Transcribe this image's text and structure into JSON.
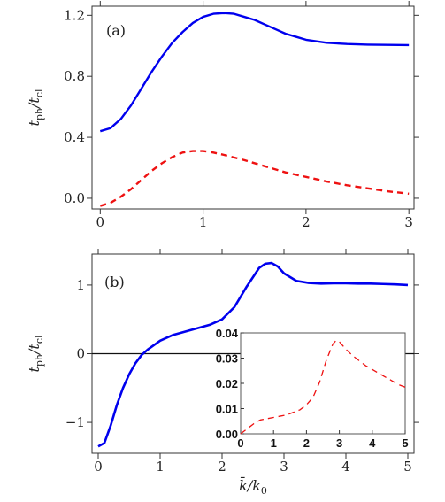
{
  "chart_data": [
    {
      "type": "line",
      "panel_label": "(a)",
      "xlabel": "",
      "ylabel": "t_ph/t_cl",
      "xlim": [
        -0.08,
        3.05
      ],
      "ylim": [
        -0.07,
        1.26
      ],
      "xticks": [
        0,
        1,
        2,
        3
      ],
      "xtick_labels": [
        "0",
        "1",
        "2",
        "3"
      ],
      "yticks": [
        0.0,
        0.4,
        0.8,
        1.2
      ],
      "ytick_labels": [
        "0.0",
        "0.4",
        "0.8",
        "1.2"
      ],
      "grid": false,
      "series": [
        {
          "color": "#0000ee",
          "style": "solid",
          "x": [
            0,
            0.1,
            0.2,
            0.3,
            0.4,
            0.5,
            0.6,
            0.7,
            0.8,
            0.9,
            1.0,
            1.1,
            1.2,
            1.3,
            1.4,
            1.5,
            1.6,
            1.7,
            1.8,
            1.9,
            2.0,
            2.2,
            2.4,
            2.6,
            2.8,
            3.0
          ],
          "y": [
            0.44,
            0.46,
            0.52,
            0.61,
            0.72,
            0.83,
            0.93,
            1.02,
            1.09,
            1.15,
            1.19,
            1.21,
            1.215,
            1.21,
            1.19,
            1.17,
            1.14,
            1.11,
            1.08,
            1.06,
            1.04,
            1.02,
            1.012,
            1.008,
            1.006,
            1.005
          ]
        },
        {
          "color": "#ee1111",
          "style": "dashed",
          "x": [
            0,
            0.1,
            0.2,
            0.3,
            0.4,
            0.5,
            0.6,
            0.7,
            0.8,
            0.9,
            1.0,
            1.1,
            1.2,
            1.4,
            1.6,
            1.8,
            2.0,
            2.2,
            2.4,
            2.6,
            2.8,
            3.0
          ],
          "y": [
            -0.05,
            -0.03,
            0.01,
            0.06,
            0.12,
            0.18,
            0.23,
            0.27,
            0.3,
            0.31,
            0.31,
            0.3,
            0.285,
            0.25,
            0.21,
            0.17,
            0.14,
            0.11,
            0.085,
            0.065,
            0.045,
            0.03
          ]
        }
      ]
    },
    {
      "type": "line",
      "panel_label": "(b)",
      "xlabel": "k̄/k0",
      "ylabel": "t_ph/t_cl",
      "xlim": [
        -0.1,
        5.1
      ],
      "ylim": [
        -1.45,
        1.45
      ],
      "xticks": [
        0,
        1,
        2,
        3,
        4,
        5
      ],
      "xtick_labels": [
        "0",
        "1",
        "2",
        "3",
        "4",
        "5"
      ],
      "yticks": [
        -1,
        0,
        1
      ],
      "ytick_labels": [
        "−1",
        "0",
        "1"
      ],
      "zero_line": true,
      "grid": false,
      "series": [
        {
          "color": "#0000ee",
          "style": "solid",
          "x": [
            0,
            0.1,
            0.2,
            0.3,
            0.4,
            0.5,
            0.6,
            0.7,
            0.8,
            1.0,
            1.2,
            1.4,
            1.6,
            1.8,
            2.0,
            2.2,
            2.4,
            2.6,
            2.7,
            2.8,
            2.9,
            3.0,
            3.2,
            3.4,
            3.6,
            3.8,
            4.0,
            4.2,
            4.4,
            4.6,
            4.8,
            5.0
          ],
          "y": [
            -1.35,
            -1.3,
            -1.05,
            -0.75,
            -0.5,
            -0.3,
            -0.14,
            -0.02,
            0.06,
            0.19,
            0.27,
            0.32,
            0.37,
            0.42,
            0.5,
            0.68,
            0.98,
            1.25,
            1.31,
            1.32,
            1.27,
            1.17,
            1.06,
            1.03,
            1.02,
            1.025,
            1.025,
            1.02,
            1.02,
            1.015,
            1.01,
            1.0
          ]
        }
      ],
      "inset": {
        "xlim": [
          0,
          5
        ],
        "ylim": [
          0,
          0.04
        ],
        "xticks": [
          0,
          1,
          2,
          3,
          4,
          5
        ],
        "xtick_labels": [
          "0",
          "1",
          "2",
          "3",
          "4",
          "5"
        ],
        "yticks": [
          0.0,
          0.01,
          0.02,
          0.03,
          0.04
        ],
        "ytick_labels": [
          "0.00",
          "0.01",
          "0.02",
          "0.03",
          "0.04"
        ],
        "series": [
          {
            "color": "#ee1111",
            "style": "dashed",
            "x": [
              0,
              0.2,
              0.4,
              0.6,
              0.8,
              1.0,
              1.2,
              1.4,
              1.6,
              1.8,
              2.0,
              2.2,
              2.4,
              2.6,
              2.8,
              2.9,
              3.0,
              3.2,
              3.4,
              3.6,
              3.8,
              4.0,
              4.2,
              4.4,
              4.6,
              4.8,
              5.0
            ],
            "y": [
              0.0,
              0.002,
              0.004,
              0.0055,
              0.006,
              0.0065,
              0.007,
              0.0075,
              0.0085,
              0.0095,
              0.0115,
              0.0145,
              0.0205,
              0.029,
              0.0355,
              0.037,
              0.0365,
              0.0335,
              0.031,
              0.029,
              0.027,
              0.0255,
              0.024,
              0.0225,
              0.021,
              0.0195,
              0.0185
            ]
          }
        ]
      }
    }
  ]
}
